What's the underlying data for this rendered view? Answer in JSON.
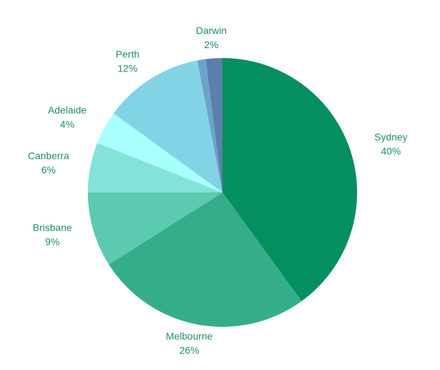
{
  "chart_data": {
    "type": "pie",
    "categories": [
      "Sydney",
      "Melbourne",
      "Brisbane",
      "Canberra",
      "Adelaide",
      "Perth",
      null,
      "Darwin"
    ],
    "values": [
      40,
      26,
      9,
      6,
      4,
      12,
      1,
      2
    ],
    "value_labels": [
      "40%",
      "26%",
      "9%",
      "6%",
      "4%",
      "12%",
      null,
      "2%"
    ],
    "colors": [
      "#038f5e",
      "#36ad8a",
      "#5ccab0",
      "#84e3d8",
      "#aaffff",
      "#82d3e5",
      "#6aa5c9",
      "#5b7fae"
    ]
  }
}
